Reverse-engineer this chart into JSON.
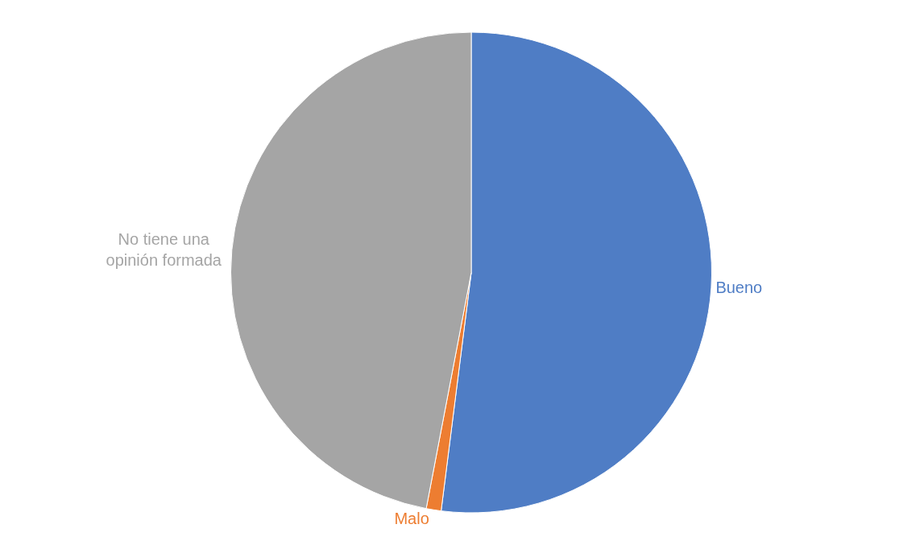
{
  "chart_data": {
    "type": "pie",
    "categories": [
      "Bueno",
      "Malo",
      "No tiene una opinión formada"
    ],
    "values": [
      52,
      1,
      47
    ],
    "colors": [
      "#4f7dc5",
      "#ed7d31",
      "#a5a5a5"
    ],
    "legend": false
  }
}
